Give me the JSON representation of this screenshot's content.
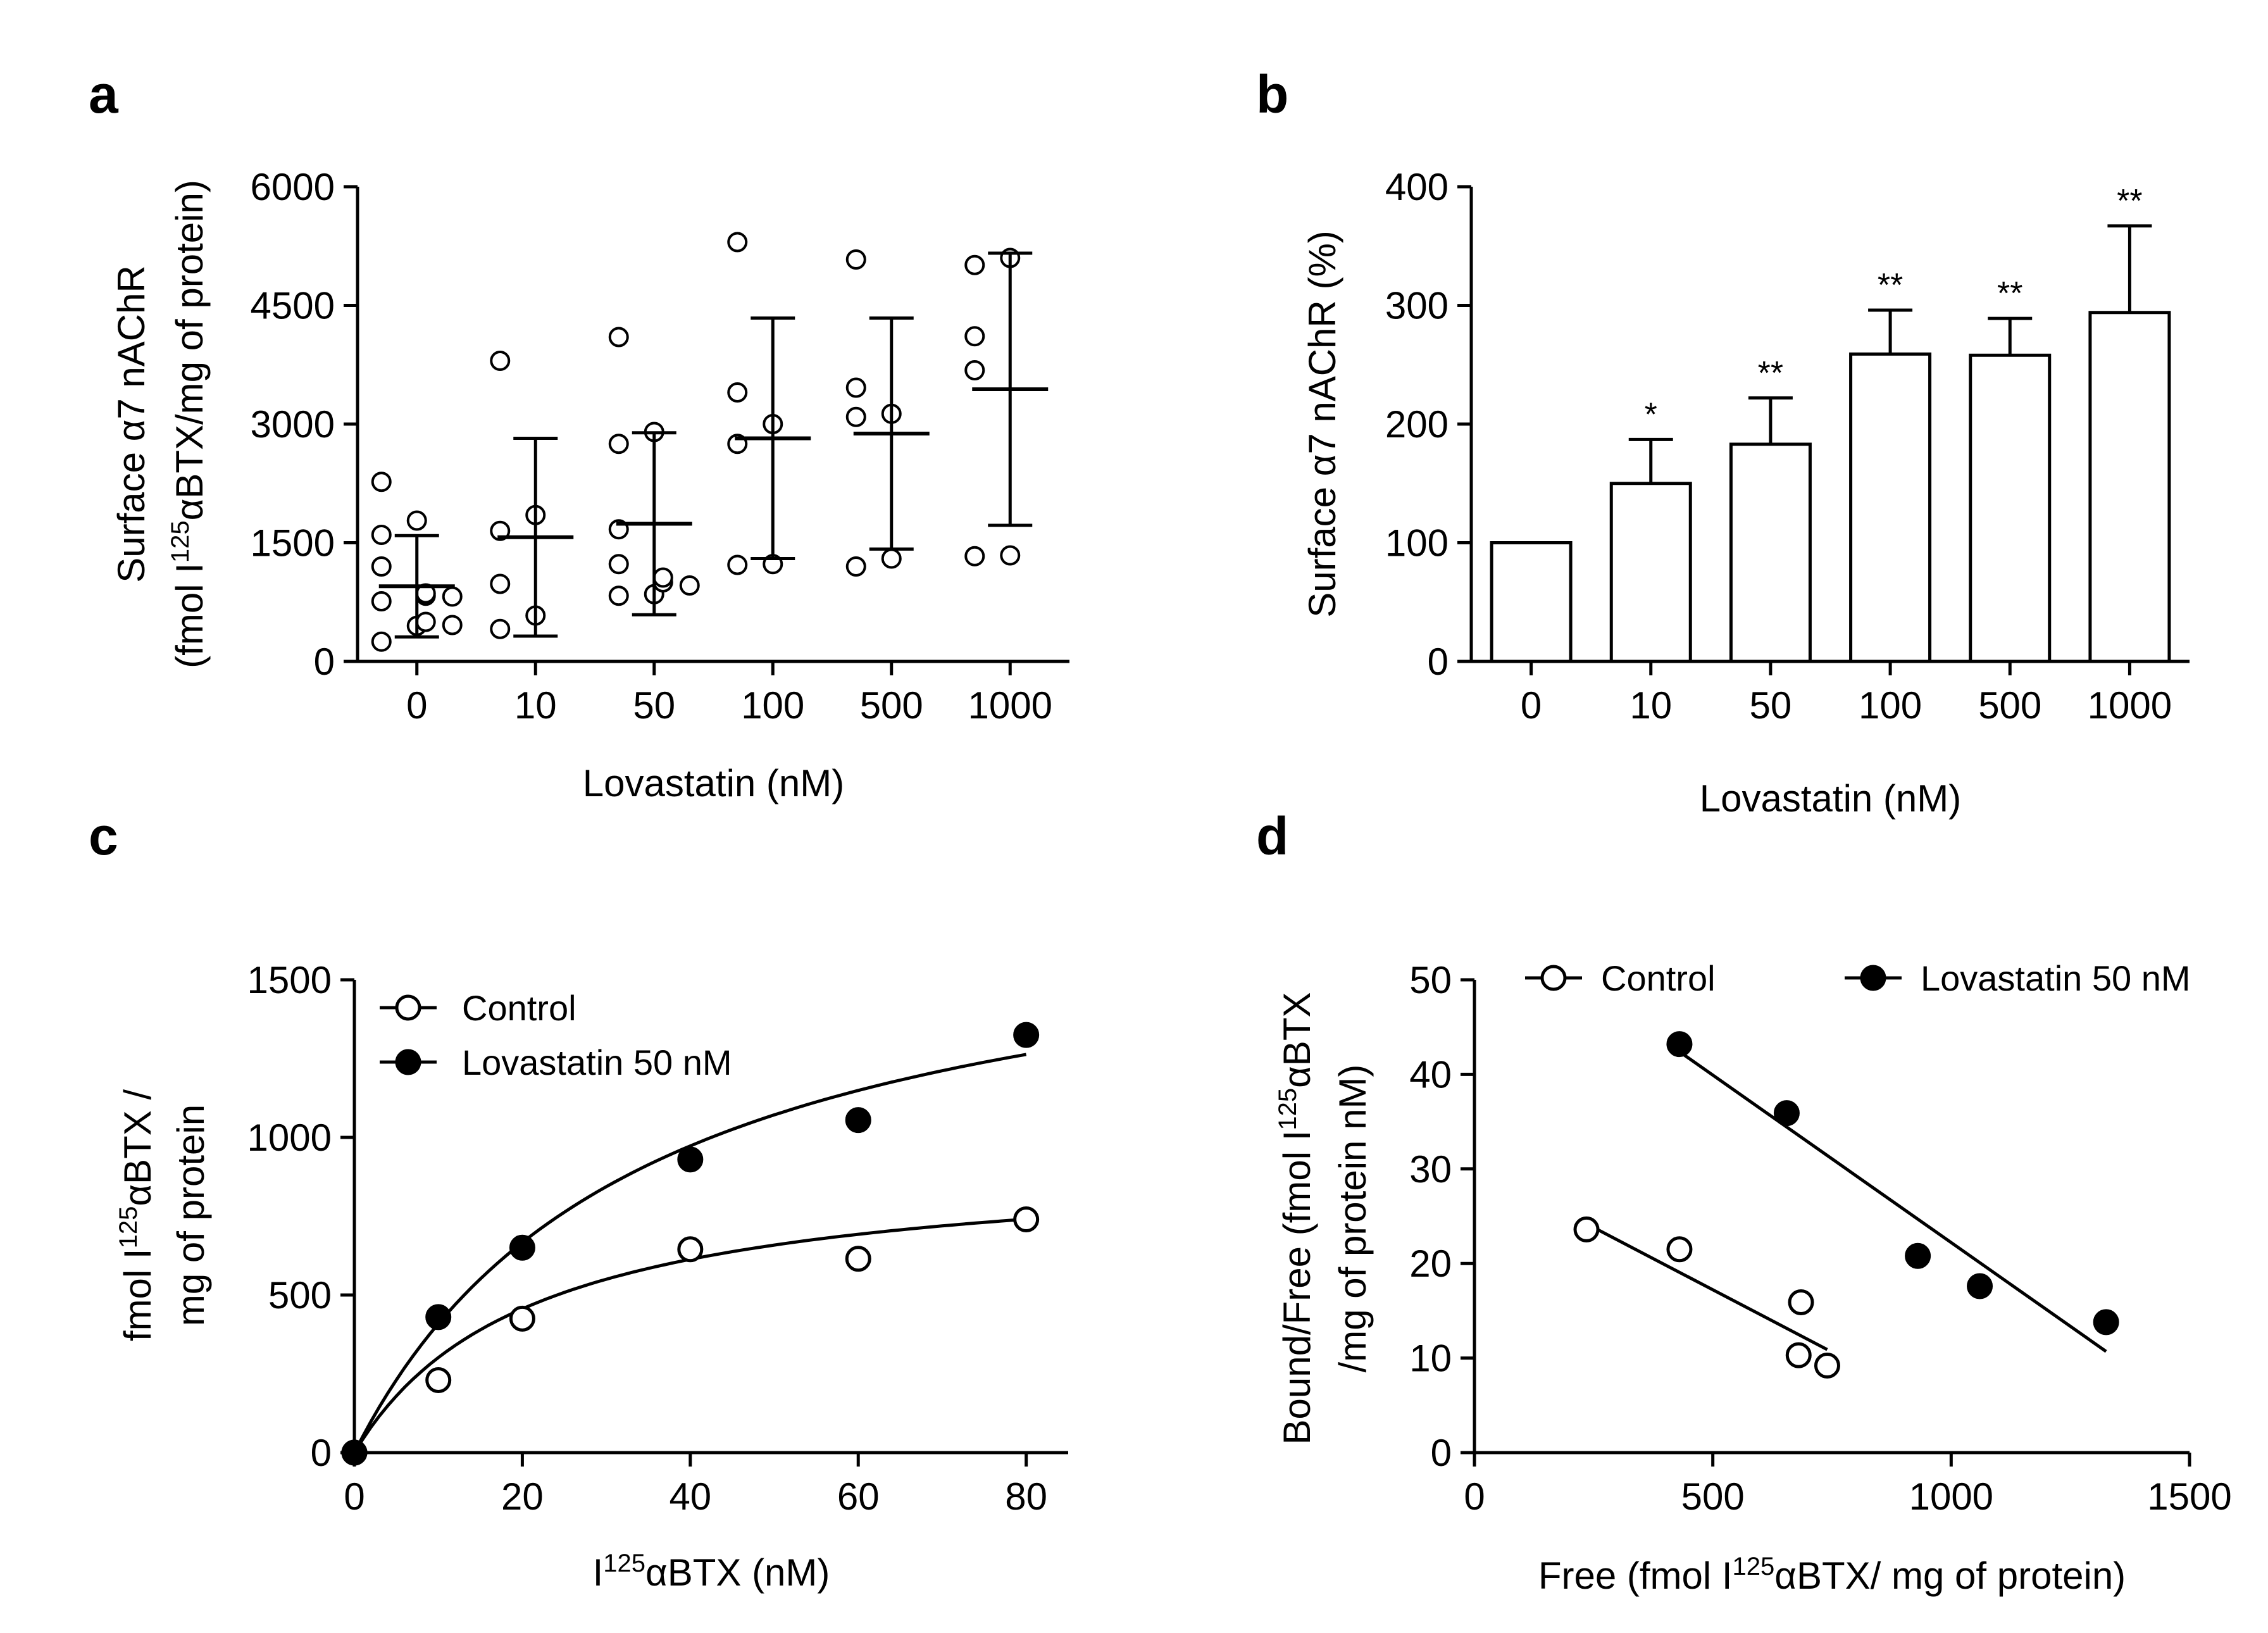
{
  "chart_data": [
    {
      "panel": "a",
      "type": "scatter",
      "xlabel": "Lovastatin (nM)",
      "ylabel_line1": "Surface α7 nAChR",
      "ylabel_line2": "(fmol I125αBTX/mg of protein)",
      "ylabel_line2_parts": [
        "(fmol I",
        "125",
        "αBTX/mg of protein)"
      ],
      "categories": [
        "0",
        "10",
        "50",
        "100",
        "500",
        "1000"
      ],
      "ylim": [
        0,
        6000
      ],
      "yticks": [
        "0",
        "1500",
        "3000",
        "4500",
        "6000"
      ],
      "points": [
        [
          2270,
          1780,
          1600,
          1200,
          860,
          830,
          820,
          760,
          500,
          460,
          450,
          250
        ],
        [
          3800,
          1850,
          1650,
          980,
          580,
          410
        ],
        [
          4100,
          2900,
          2750,
          1670,
          1230,
          1060,
          1000,
          960,
          850,
          830
        ],
        [
          5300,
          3400,
          3000,
          2750,
          1230,
          1220
        ],
        [
          5080,
          3460,
          3130,
          3090,
          1300,
          1200
        ],
        [
          5100,
          5010,
          4110,
          3680,
          1340,
          1330
        ]
      ],
      "means": [
        950,
        1570,
        1740,
        2820,
        2880,
        3440
      ],
      "sd": [
        640,
        1250,
        1150,
        1520,
        1460,
        1720
      ]
    },
    {
      "panel": "b",
      "type": "bar",
      "xlabel": "Lovastatin (nM)",
      "ylabel": "Surface α7 nAChR (%)",
      "categories": [
        "0",
        "10",
        "50",
        "100",
        "500",
        "1000"
      ],
      "values": [
        100,
        150,
        183,
        259,
        258,
        294
      ],
      "errors": [
        0,
        37,
        39,
        37,
        31,
        73
      ],
      "significance": [
        "",
        "*",
        "**",
        "**",
        "**",
        "**"
      ],
      "ylim": [
        0,
        400
      ],
      "yticks": [
        "0",
        "100",
        "200",
        "300",
        "400"
      ]
    },
    {
      "panel": "c",
      "type": "scatter",
      "xlabel_parts": [
        "I",
        "125",
        "αBTX  (nM)"
      ],
      "ylabel_line1_parts": [
        "fmol I",
        "125",
        "αBTX /"
      ],
      "ylabel_line2": "mg of protein",
      "xlim": [
        0,
        85
      ],
      "ylim": [
        0,
        1500
      ],
      "xticks": [
        "0",
        "20",
        "40",
        "60",
        "80"
      ],
      "yticks": [
        "0",
        "500",
        "1000",
        "1500"
      ],
      "series": [
        {
          "name": "Control",
          "filled": false,
          "x": [
            0,
            10,
            20,
            40,
            60,
            80
          ],
          "y": [
            0,
            230,
            425,
            645,
            615,
            740
          ],
          "fit": {
            "bmax": 935,
            "kd": 21
          }
        },
        {
          "name": "Lovastatin 50 nM",
          "filled": true,
          "x": [
            0,
            10,
            20,
            40,
            60,
            80
          ],
          "y": [
            0,
            430,
            650,
            930,
            1055,
            1325
          ],
          "fit": {
            "bmax": 1800,
            "kd": 34
          }
        }
      ]
    },
    {
      "panel": "d",
      "type": "scatter",
      "xlabel_parts": [
        "Free (fmol I",
        "125",
        "αBTX/ mg of protein)"
      ],
      "ylabel_line1_parts": [
        "Bound/Free (fmol I",
        "125",
        "αBTX"
      ],
      "ylabel_line2": "/mg of protein nM)",
      "xlim": [
        0,
        1500
      ],
      "ylim": [
        0,
        50
      ],
      "xticks": [
        "0",
        "500",
        "1000",
        "1500"
      ],
      "yticks": [
        "0",
        "10",
        "20",
        "30",
        "40",
        "50"
      ],
      "series": [
        {
          "name": "Control",
          "filled": false,
          "x": [
            235,
            430,
            685,
            680,
            740
          ],
          "y": [
            23.6,
            21.5,
            15.9,
            10.3,
            9.2
          ],
          "fit": {
            "x": [
              235,
              740
            ],
            "y": [
              24.2,
              10.9
            ]
          }
        },
        {
          "name": "Lovastatin 50 nM",
          "filled": true,
          "x": [
            430,
            655,
            930,
            1060,
            1325
          ],
          "y": [
            43.2,
            35.9,
            20.8,
            17.6,
            13.8
          ],
          "fit": {
            "x": [
              430,
              1325
            ],
            "y": [
              42.4,
              10.7
            ]
          }
        }
      ]
    }
  ]
}
